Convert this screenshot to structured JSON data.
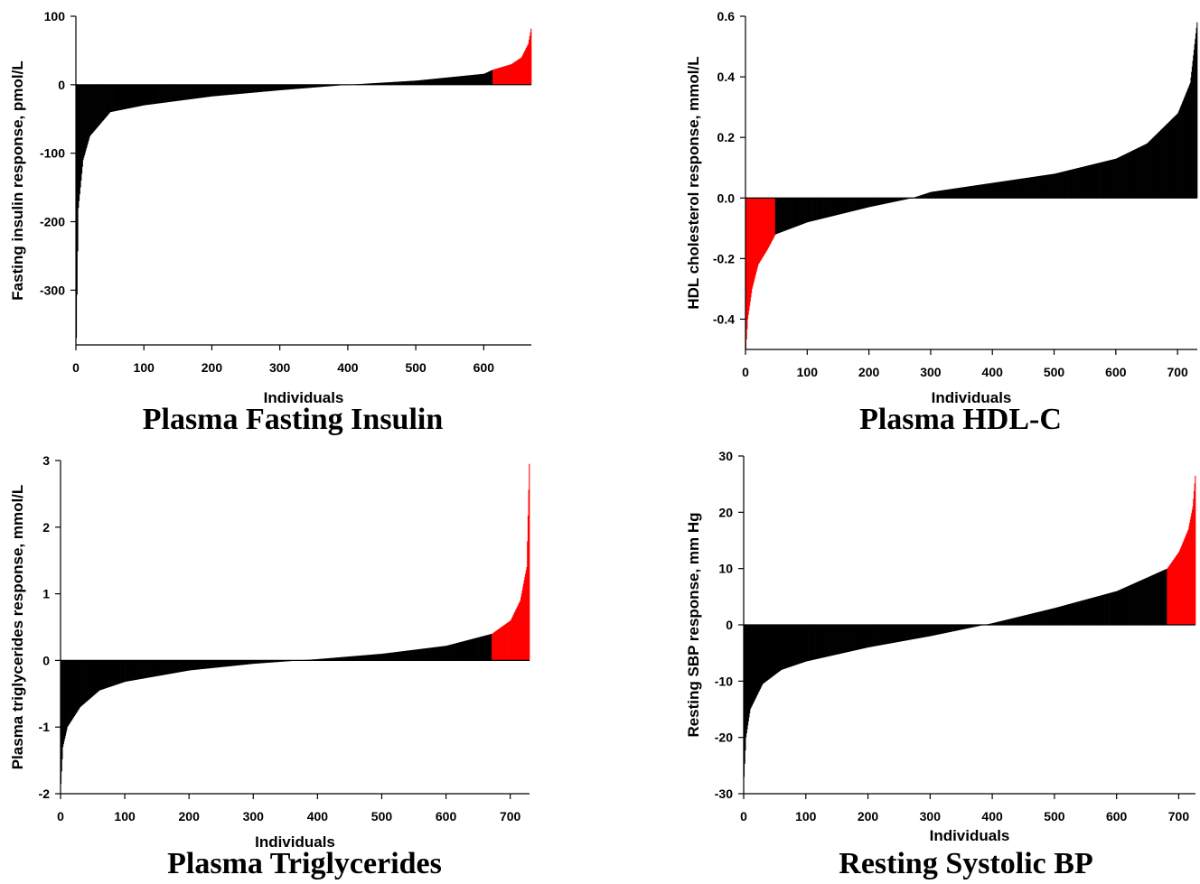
{
  "colors": {
    "bar": "#000000",
    "highlight": "#ff0000"
  },
  "chart_data": [
    {
      "type": "bar",
      "title": "Plasma Fasting Insulin",
      "xlabel": "Individuals",
      "ylabel": "Fasting insulin response, pmol/L",
      "xlim": [
        0,
        670
      ],
      "ylim": [
        -380,
        100
      ],
      "xticks": [
        0,
        100,
        200,
        300,
        400,
        500,
        600
      ],
      "yticks": [
        100,
        0,
        -100,
        -200,
        -300
      ],
      "n": 670,
      "highlight": "top",
      "highlight_count": 57,
      "profile": [
        [
          0,
          -370
        ],
        [
          3,
          -180
        ],
        [
          10,
          -110
        ],
        [
          20,
          -75
        ],
        [
          50,
          -40
        ],
        [
          100,
          -30
        ],
        [
          200,
          -17
        ],
        [
          300,
          -8
        ],
        [
          400,
          0
        ],
        [
          500,
          6
        ],
        [
          600,
          16
        ],
        [
          613,
          22
        ],
        [
          640,
          30
        ],
        [
          655,
          40
        ],
        [
          665,
          60
        ],
        [
          669,
          82
        ]
      ]
    },
    {
      "type": "bar",
      "title": "Plasma HDL-C",
      "xlabel": "Individuals",
      "ylabel": "HDL cholesterol response, mmol/L",
      "xlim": [
        0,
        732
      ],
      "ylim": [
        -0.5,
        0.6
      ],
      "xticks": [
        0,
        100,
        200,
        300,
        400,
        500,
        600,
        700
      ],
      "yticks": [
        0.6,
        0.4,
        0.2,
        0.0,
        -0.2,
        -0.4
      ],
      "yticklabels": [
        "0.6",
        "0.4",
        "0.2",
        "0.0",
        "-0.2",
        "-0.4"
      ],
      "n": 732,
      "highlight": "bottom",
      "highlight_count": 48,
      "profile": [
        [
          0,
          -0.5
        ],
        [
          3,
          -0.4
        ],
        [
          10,
          -0.3
        ],
        [
          20,
          -0.22
        ],
        [
          35,
          -0.17
        ],
        [
          48,
          -0.12
        ],
        [
          100,
          -0.08
        ],
        [
          200,
          -0.03
        ],
        [
          270,
          0.0
        ],
        [
          300,
          0.02
        ],
        [
          400,
          0.05
        ],
        [
          500,
          0.08
        ],
        [
          600,
          0.13
        ],
        [
          650,
          0.18
        ],
        [
          700,
          0.28
        ],
        [
          720,
          0.38
        ],
        [
          731,
          0.58
        ]
      ]
    },
    {
      "type": "bar",
      "title": "Plasma Triglycerides",
      "xlabel": "Individuals",
      "ylabel": "Plasma triglycerides response, mmol/L",
      "xlim": [
        0,
        730
      ],
      "ylim": [
        -2,
        3
      ],
      "xticks": [
        0,
        100,
        200,
        300,
        400,
        500,
        600,
        700
      ],
      "yticks": [
        3,
        2,
        1,
        0,
        -1,
        -2
      ],
      "n": 730,
      "highlight": "top",
      "highlight_count": 59,
      "profile": [
        [
          0,
          -1.85
        ],
        [
          3,
          -1.3
        ],
        [
          10,
          -1.0
        ],
        [
          30,
          -0.7
        ],
        [
          60,
          -0.45
        ],
        [
          100,
          -0.32
        ],
        [
          200,
          -0.15
        ],
        [
          300,
          -0.05
        ],
        [
          400,
          0.02
        ],
        [
          500,
          0.1
        ],
        [
          600,
          0.22
        ],
        [
          671,
          0.4
        ],
        [
          700,
          0.6
        ],
        [
          715,
          0.9
        ],
        [
          725,
          1.4
        ],
        [
          729,
          2.95
        ]
      ]
    },
    {
      "type": "bar",
      "title": "Resting Systolic BP",
      "xlabel": "Individuals",
      "ylabel": "Resting SBP response, mm Hg",
      "xlim": [
        0,
        727
      ],
      "ylim": [
        -30,
        30
      ],
      "xticks": [
        0,
        100,
        200,
        300,
        400,
        500,
        600,
        700
      ],
      "yticks": [
        30,
        20,
        10,
        0,
        -10,
        -20,
        -30
      ],
      "n": 727,
      "highlight": "top",
      "highlight_count": 46,
      "profile": [
        [
          0,
          -27
        ],
        [
          3,
          -20
        ],
        [
          10,
          -15
        ],
        [
          30,
          -10.5
        ],
        [
          60,
          -8
        ],
        [
          100,
          -6.5
        ],
        [
          200,
          -4
        ],
        [
          300,
          -2
        ],
        [
          400,
          0.3
        ],
        [
          500,
          3
        ],
        [
          600,
          6
        ],
        [
          681,
          10
        ],
        [
          700,
          13
        ],
        [
          715,
          17
        ],
        [
          722,
          21
        ],
        [
          726,
          26.5
        ]
      ]
    }
  ]
}
